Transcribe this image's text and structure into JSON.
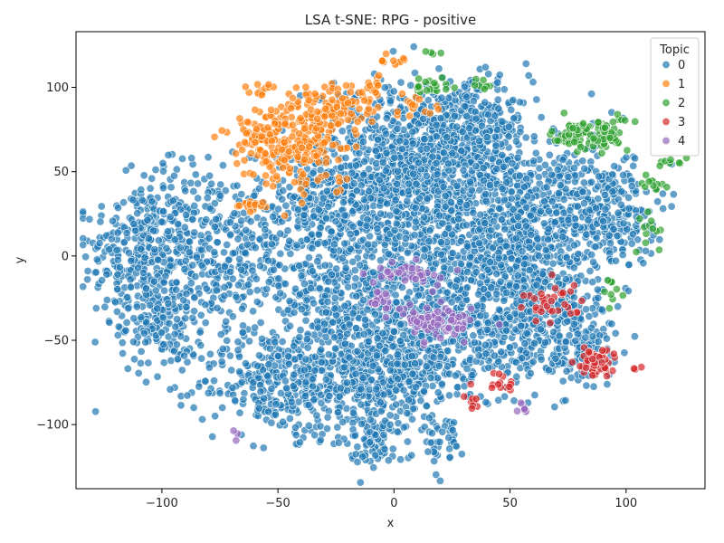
{
  "chart_data": {
    "type": "scatter",
    "title": "LSA t-SNE: RPG - positive",
    "xlabel": "x",
    "ylabel": "y",
    "xlim": [
      -137,
      134
    ],
    "ylim": [
      -138,
      133
    ],
    "xticks": [
      -100,
      -50,
      0,
      50,
      100
    ],
    "yticks": [
      -100,
      -50,
      0,
      50,
      100
    ],
    "xtick_labels": [
      "−100",
      "−50",
      "0",
      "50",
      "100"
    ],
    "ytick_labels": [
      "−100",
      "−50",
      "0",
      "50",
      "100"
    ],
    "grid": false,
    "legend": {
      "title": "Topic",
      "placement": "top-right",
      "entries": [
        "0",
        "1",
        "2",
        "3",
        "4"
      ]
    },
    "colors": {
      "0": "#1f77b4",
      "1": "#ff7f0e",
      "2": "#2ca02c",
      "3": "#d62728",
      "4": "#9467bd"
    },
    "series": [
      {
        "name": "0",
        "clusters": [
          {
            "x": -110,
            "y": 0,
            "sx": 12,
            "sy": 22,
            "n": 260
          },
          {
            "x": -100,
            "y": -40,
            "sx": 9,
            "sy": 15,
            "n": 150
          },
          {
            "x": -90,
            "y": 18,
            "sx": 14,
            "sy": 20,
            "n": 180
          },
          {
            "x": -70,
            "y": -10,
            "sx": 14,
            "sy": 22,
            "n": 220
          },
          {
            "x": -55,
            "y": -75,
            "sx": 15,
            "sy": 14,
            "n": 200
          },
          {
            "x": -30,
            "y": -65,
            "sx": 15,
            "sy": 20,
            "n": 300
          },
          {
            "x": -5,
            "y": -70,
            "sx": 12,
            "sy": 22,
            "n": 250
          },
          {
            "x": -20,
            "y": -20,
            "sx": 16,
            "sy": 18,
            "n": 300
          },
          {
            "x": -30,
            "y": 25,
            "sx": 16,
            "sy": 18,
            "n": 300
          },
          {
            "x": -10,
            "y": 60,
            "sx": 14,
            "sy": 22,
            "n": 250
          },
          {
            "x": 15,
            "y": 65,
            "sx": 15,
            "sy": 18,
            "n": 300
          },
          {
            "x": 35,
            "y": 80,
            "sx": 12,
            "sy": 12,
            "n": 200
          },
          {
            "x": 5,
            "y": 25,
            "sx": 15,
            "sy": 18,
            "n": 300
          },
          {
            "x": 25,
            "y": -20,
            "sx": 12,
            "sy": 18,
            "n": 250
          },
          {
            "x": 10,
            "y": -65,
            "sx": 12,
            "sy": 20,
            "n": 250
          },
          {
            "x": 40,
            "y": 40,
            "sx": 15,
            "sy": 20,
            "n": 350
          },
          {
            "x": 50,
            "y": 0,
            "sx": 12,
            "sy": 15,
            "n": 250
          },
          {
            "x": 50,
            "y": -45,
            "sx": 12,
            "sy": 15,
            "n": 250
          },
          {
            "x": 75,
            "y": 30,
            "sx": 14,
            "sy": 20,
            "n": 300
          },
          {
            "x": 70,
            "y": -25,
            "sx": 12,
            "sy": 20,
            "n": 220
          },
          {
            "x": 95,
            "y": 25,
            "sx": 9,
            "sy": 16,
            "n": 150
          },
          {
            "x": 80,
            "y": -55,
            "sx": 8,
            "sy": 10,
            "n": 100
          },
          {
            "x": -10,
            "y": -110,
            "sx": 6,
            "sy": 8,
            "n": 60
          },
          {
            "x": 20,
            "y": -110,
            "sx": 4,
            "sy": 6,
            "n": 30
          }
        ]
      },
      {
        "name": "1",
        "clusters": [
          {
            "x": -55,
            "y": 65,
            "sx": 8,
            "sy": 12,
            "n": 130
          },
          {
            "x": -35,
            "y": 70,
            "sx": 10,
            "sy": 14,
            "n": 150
          },
          {
            "x": -25,
            "y": 88,
            "sx": 10,
            "sy": 7,
            "n": 80
          },
          {
            "x": -58,
            "y": 98,
            "sx": 3,
            "sy": 2,
            "n": 12
          },
          {
            "x": -62,
            "y": 30,
            "sx": 4,
            "sy": 2,
            "n": 14
          },
          {
            "x": -10,
            "y": 100,
            "sx": 3,
            "sy": 4,
            "n": 14
          },
          {
            "x": 0,
            "y": 115,
            "sx": 3,
            "sy": 3,
            "n": 10
          },
          {
            "x": 10,
            "y": 88,
            "sx": 5,
            "sy": 6,
            "n": 16
          }
        ]
      },
      {
        "name": "2",
        "clusters": [
          {
            "x": 85,
            "y": 72,
            "sx": 8,
            "sy": 5,
            "n": 100
          },
          {
            "x": 18,
            "y": 101,
            "sx": 5,
            "sy": 3,
            "n": 20
          },
          {
            "x": 38,
            "y": 101,
            "sx": 3,
            "sy": 2,
            "n": 8
          },
          {
            "x": 113,
            "y": 42,
            "sx": 3,
            "sy": 4,
            "n": 12
          },
          {
            "x": 119,
            "y": 56,
            "sx": 3,
            "sy": 1,
            "n": 8
          },
          {
            "x": 111,
            "y": 15,
            "sx": 3,
            "sy": 7,
            "n": 12
          },
          {
            "x": 95,
            "y": -20,
            "sx": 3,
            "sy": 4,
            "n": 10
          },
          {
            "x": 16,
            "y": 120,
            "sx": 2,
            "sy": 1,
            "n": 4
          }
        ]
      },
      {
        "name": "3",
        "clusters": [
          {
            "x": 87,
            "y": -63,
            "sx": 5,
            "sy": 5,
            "n": 50
          },
          {
            "x": 68,
            "y": -28,
            "sx": 7,
            "sy": 6,
            "n": 35
          },
          {
            "x": 45,
            "y": -75,
            "sx": 4,
            "sy": 3,
            "n": 15
          },
          {
            "x": 35,
            "y": -87,
            "sx": 2,
            "sy": 2,
            "n": 8
          },
          {
            "x": 104,
            "y": -67,
            "sx": 1,
            "sy": 1,
            "n": 3
          }
        ]
      },
      {
        "name": "4",
        "clusters": [
          {
            "x": 20,
            "y": -40,
            "sx": 8,
            "sy": 5,
            "n": 80
          },
          {
            "x": 5,
            "y": -10,
            "sx": 7,
            "sy": 3,
            "n": 40
          },
          {
            "x": -5,
            "y": -28,
            "sx": 3,
            "sy": 4,
            "n": 20
          },
          {
            "x": 56,
            "y": -90,
            "sx": 2,
            "sy": 2,
            "n": 8
          },
          {
            "x": -69,
            "y": -106,
            "sx": 1,
            "sy": 2,
            "n": 3
          }
        ]
      }
    ]
  }
}
